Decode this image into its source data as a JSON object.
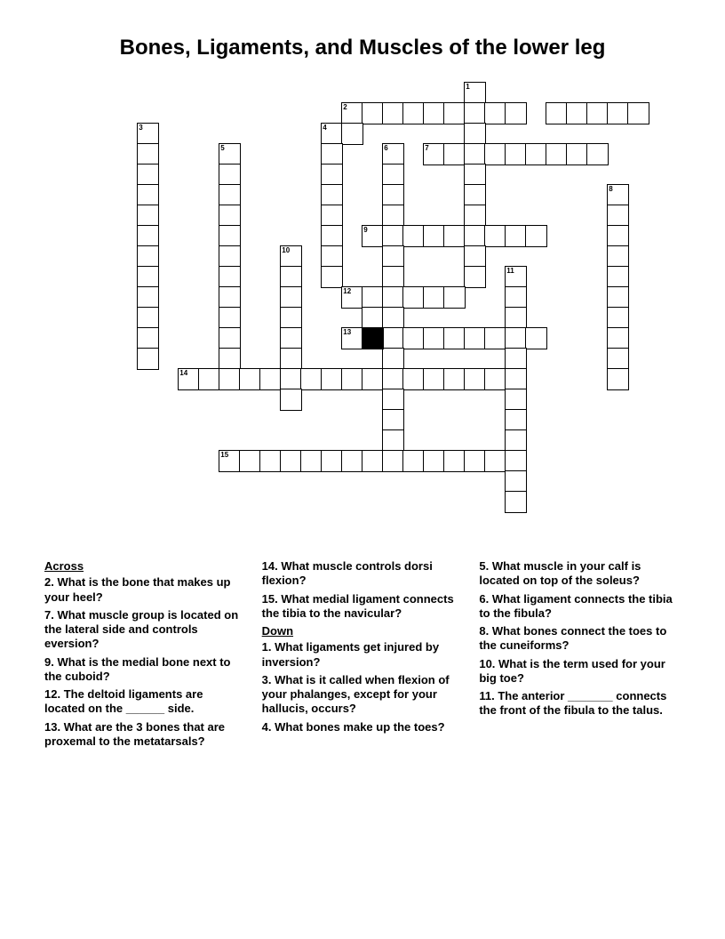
{
  "title": "Bones, Ligaments, and Muscles of the lower leg",
  "grid": {
    "cols": 28,
    "rows": 22,
    "cell_size": 23,
    "border_color": "#000000",
    "background_color": "#ffffff",
    "black_cells": [
      [
        14,
        12
      ]
    ],
    "cells": [
      {
        "r": 0,
        "c": 19,
        "n": "1"
      },
      {
        "r": 1,
        "c": 13,
        "n": "2"
      },
      {
        "r": 1,
        "c": 14
      },
      {
        "r": 1,
        "c": 15
      },
      {
        "r": 1,
        "c": 16
      },
      {
        "r": 1,
        "c": 17
      },
      {
        "r": 1,
        "c": 18
      },
      {
        "r": 1,
        "c": 19
      },
      {
        "r": 1,
        "c": 20
      },
      {
        "r": 1,
        "c": 21
      },
      {
        "r": 1,
        "c": 23
      },
      {
        "r": 1,
        "c": 24
      },
      {
        "r": 1,
        "c": 25
      },
      {
        "r": 1,
        "c": 26
      },
      {
        "r": 1,
        "c": 27
      },
      {
        "r": 2,
        "c": 3,
        "n": "3"
      },
      {
        "r": 2,
        "c": 12,
        "n": "4"
      },
      {
        "r": 2,
        "c": 13
      },
      {
        "r": 2,
        "c": 19
      },
      {
        "r": 3,
        "c": 3
      },
      {
        "r": 3,
        "c": 7,
        "n": "5"
      },
      {
        "r": 3,
        "c": 12
      },
      {
        "r": 3,
        "c": 15,
        "n": "6"
      },
      {
        "r": 3,
        "c": 17,
        "n": "7"
      },
      {
        "r": 3,
        "c": 18
      },
      {
        "r": 3,
        "c": 19
      },
      {
        "r": 3,
        "c": 20
      },
      {
        "r": 3,
        "c": 21
      },
      {
        "r": 3,
        "c": 22
      },
      {
        "r": 3,
        "c": 23
      },
      {
        "r": 3,
        "c": 24
      },
      {
        "r": 3,
        "c": 25
      },
      {
        "r": 4,
        "c": 3
      },
      {
        "r": 4,
        "c": 7
      },
      {
        "r": 4,
        "c": 12
      },
      {
        "r": 4,
        "c": 15
      },
      {
        "r": 4,
        "c": 19
      },
      {
        "r": 5,
        "c": 3
      },
      {
        "r": 5,
        "c": 7
      },
      {
        "r": 5,
        "c": 12
      },
      {
        "r": 5,
        "c": 15
      },
      {
        "r": 5,
        "c": 19
      },
      {
        "r": 5,
        "c": 26,
        "n": "8"
      },
      {
        "r": 6,
        "c": 3
      },
      {
        "r": 6,
        "c": 7
      },
      {
        "r": 6,
        "c": 12
      },
      {
        "r": 6,
        "c": 15
      },
      {
        "r": 6,
        "c": 19
      },
      {
        "r": 6,
        "c": 26
      },
      {
        "r": 7,
        "c": 3
      },
      {
        "r": 7,
        "c": 7
      },
      {
        "r": 7,
        "c": 12
      },
      {
        "r": 7,
        "c": 14,
        "n": "9"
      },
      {
        "r": 7,
        "c": 15
      },
      {
        "r": 7,
        "c": 16
      },
      {
        "r": 7,
        "c": 17
      },
      {
        "r": 7,
        "c": 18
      },
      {
        "r": 7,
        "c": 19
      },
      {
        "r": 7,
        "c": 20
      },
      {
        "r": 7,
        "c": 21
      },
      {
        "r": 7,
        "c": 22
      },
      {
        "r": 7,
        "c": 26
      },
      {
        "r": 8,
        "c": 3
      },
      {
        "r": 8,
        "c": 7
      },
      {
        "r": 8,
        "c": 10,
        "n": "10"
      },
      {
        "r": 8,
        "c": 12
      },
      {
        "r": 8,
        "c": 15
      },
      {
        "r": 8,
        "c": 19
      },
      {
        "r": 8,
        "c": 26
      },
      {
        "r": 9,
        "c": 3
      },
      {
        "r": 9,
        "c": 7
      },
      {
        "r": 9,
        "c": 10
      },
      {
        "r": 9,
        "c": 12
      },
      {
        "r": 9,
        "c": 15
      },
      {
        "r": 9,
        "c": 19
      },
      {
        "r": 9,
        "c": 21,
        "n": "11"
      },
      {
        "r": 9,
        "c": 26
      },
      {
        "r": 10,
        "c": 3
      },
      {
        "r": 10,
        "c": 7
      },
      {
        "r": 10,
        "c": 10
      },
      {
        "r": 10,
        "c": 13,
        "n": "12"
      },
      {
        "r": 10,
        "c": 14
      },
      {
        "r": 10,
        "c": 15
      },
      {
        "r": 10,
        "c": 16
      },
      {
        "r": 10,
        "c": 17
      },
      {
        "r": 10,
        "c": 18
      },
      {
        "r": 10,
        "c": 21
      },
      {
        "r": 10,
        "c": 26
      },
      {
        "r": 11,
        "c": 3
      },
      {
        "r": 11,
        "c": 7
      },
      {
        "r": 11,
        "c": 10
      },
      {
        "r": 11,
        "c": 14
      },
      {
        "r": 11,
        "c": 15
      },
      {
        "r": 11,
        "c": 21
      },
      {
        "r": 11,
        "c": 26
      },
      {
        "r": 12,
        "c": 3
      },
      {
        "r": 12,
        "c": 7
      },
      {
        "r": 12,
        "c": 10
      },
      {
        "r": 12,
        "c": 13,
        "n": "13"
      },
      {
        "r": 12,
        "c": 14
      },
      {
        "r": 12,
        "c": 15
      },
      {
        "r": 12,
        "c": 16
      },
      {
        "r": 12,
        "c": 17
      },
      {
        "r": 12,
        "c": 18
      },
      {
        "r": 12,
        "c": 19
      },
      {
        "r": 12,
        "c": 20
      },
      {
        "r": 12,
        "c": 21
      },
      {
        "r": 12,
        "c": 22
      },
      {
        "r": 12,
        "c": 26
      },
      {
        "r": 13,
        "c": 3
      },
      {
        "r": 13,
        "c": 7
      },
      {
        "r": 13,
        "c": 10
      },
      {
        "r": 13,
        "c": 15
      },
      {
        "r": 13,
        "c": 21
      },
      {
        "r": 13,
        "c": 26
      },
      {
        "r": 14,
        "c": 5,
        "n": "14"
      },
      {
        "r": 14,
        "c": 6
      },
      {
        "r": 14,
        "c": 7
      },
      {
        "r": 14,
        "c": 8
      },
      {
        "r": 14,
        "c": 9
      },
      {
        "r": 14,
        "c": 10
      },
      {
        "r": 14,
        "c": 11
      },
      {
        "r": 14,
        "c": 12
      },
      {
        "r": 14,
        "c": 13
      },
      {
        "r": 14,
        "c": 14
      },
      {
        "r": 14,
        "c": 15
      },
      {
        "r": 14,
        "c": 16
      },
      {
        "r": 14,
        "c": 17
      },
      {
        "r": 14,
        "c": 18
      },
      {
        "r": 14,
        "c": 19
      },
      {
        "r": 14,
        "c": 20
      },
      {
        "r": 14,
        "c": 21
      },
      {
        "r": 14,
        "c": 26
      },
      {
        "r": 15,
        "c": 10
      },
      {
        "r": 15,
        "c": 15
      },
      {
        "r": 15,
        "c": 21
      },
      {
        "r": 16,
        "c": 15
      },
      {
        "r": 16,
        "c": 21
      },
      {
        "r": 17,
        "c": 15
      },
      {
        "r": 17,
        "c": 21
      },
      {
        "r": 18,
        "c": 7,
        "n": "15"
      },
      {
        "r": 18,
        "c": 8
      },
      {
        "r": 18,
        "c": 9
      },
      {
        "r": 18,
        "c": 10
      },
      {
        "r": 18,
        "c": 11
      },
      {
        "r": 18,
        "c": 12
      },
      {
        "r": 18,
        "c": 13
      },
      {
        "r": 18,
        "c": 14
      },
      {
        "r": 18,
        "c": 15
      },
      {
        "r": 18,
        "c": 16
      },
      {
        "r": 18,
        "c": 17
      },
      {
        "r": 18,
        "c": 18
      },
      {
        "r": 18,
        "c": 19
      },
      {
        "r": 18,
        "c": 20
      },
      {
        "r": 18,
        "c": 21
      },
      {
        "r": 19,
        "c": 21
      },
      {
        "r": 20,
        "c": 21
      }
    ]
  },
  "clues": {
    "across_heading": "Across",
    "down_heading": "Down",
    "col1": [
      {
        "type": "heading",
        "text": "Across"
      },
      {
        "n": "2.",
        "t": "What is the bone that makes up your heel?"
      },
      {
        "n": "7.",
        "t": "What muscle group is located on the lateral side and controls eversion?"
      },
      {
        "n": "9.",
        "t": "What is the medial bone next to the cuboid?"
      },
      {
        "n": "12.",
        "t": "The deltoid ligaments are located on the ______ side."
      },
      {
        "n": "13.",
        "t": "What are the 3 bones that are proxemal to the metatarsals?"
      }
    ],
    "col2": [
      {
        "n": "14.",
        "t": "What muscle controls dorsi flexion?"
      },
      {
        "n": "15.",
        "t": "What medial ligament connects the tibia to the navicular?"
      },
      {
        "type": "heading",
        "text": "Down"
      },
      {
        "n": "1.",
        "t": "What ligaments get injured by inversion?"
      },
      {
        "n": "3.",
        "t": "What is it called when flexion of your phalanges, except for your hallucis, occurs?"
      },
      {
        "n": "4.",
        "t": "What bones make up the toes?"
      }
    ],
    "col3": [
      {
        "n": "5.",
        "t": "What muscle in your calf is located on top of the soleus?"
      },
      {
        "n": "6.",
        "t": "What ligament connects the tibia to the fibula?"
      },
      {
        "n": "8.",
        "t": "What bones connect the toes to the cuneiforms?"
      },
      {
        "n": "10.",
        "t": "What is the term used for your big toe?"
      },
      {
        "n": "11.",
        "t": "The anterior _______ connects the front of the fibula to the talus."
      }
    ]
  }
}
